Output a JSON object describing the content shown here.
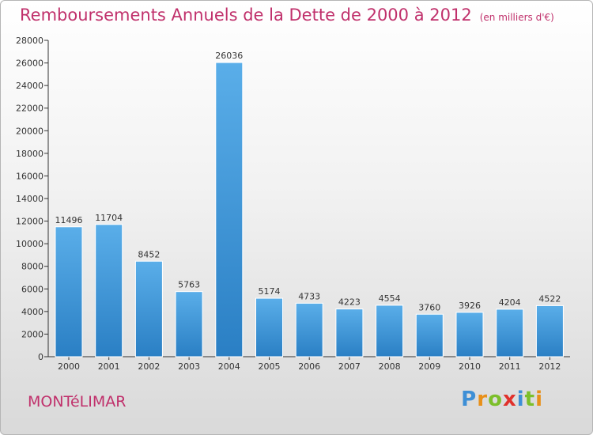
{
  "title": "Remboursements Annuels de la Dette de 2000 à 2012",
  "unit": "(en milliers d'€)",
  "place": "MONTéLIMAR",
  "brand": "Proxiti",
  "colors": {
    "bar_light": "#5aaee9",
    "bar_dark": "#2a7fc4",
    "title": "#c0306b"
  },
  "chart_data": {
    "type": "bar",
    "categories": [
      "2000",
      "2001",
      "2002",
      "2003",
      "2004",
      "2005",
      "2006",
      "2007",
      "2008",
      "2009",
      "2010",
      "2011",
      "2012"
    ],
    "values": [
      11496,
      11704,
      8452,
      5763,
      26036,
      5174,
      4733,
      4223,
      4554,
      3760,
      3926,
      4204,
      4522
    ],
    "ylim": [
      0,
      28000
    ],
    "yticks": [
      0,
      2000,
      4000,
      6000,
      8000,
      10000,
      12000,
      14000,
      16000,
      18000,
      20000,
      22000,
      24000,
      26000,
      28000
    ],
    "data_labels": true,
    "grid": false
  }
}
